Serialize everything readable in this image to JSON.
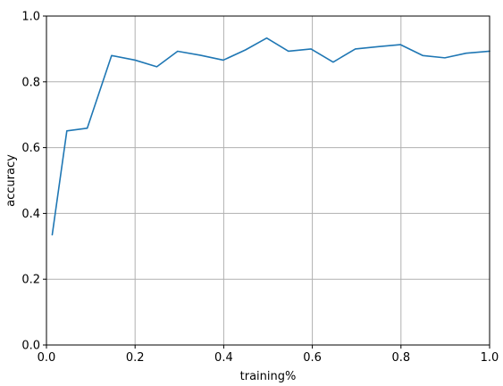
{
  "chart_data": {
    "type": "line",
    "title": "",
    "xlabel": "training%",
    "ylabel": "accuracy",
    "xlim": [
      0.0,
      1.0
    ],
    "ylim": [
      0.0,
      1.0
    ],
    "xticks": [
      0.0,
      0.2,
      0.4,
      0.6,
      0.8,
      1.0
    ],
    "yticks": [
      0.0,
      0.2,
      0.4,
      0.6,
      0.8,
      1.0
    ],
    "xtick_labels": [
      "0.0",
      "0.2",
      "0.4",
      "0.6",
      "0.8",
      "1.0"
    ],
    "ytick_labels": [
      "0.0",
      "0.2",
      "0.4",
      "0.6",
      "0.8",
      "1.0"
    ],
    "grid": true,
    "legend": false,
    "series": [
      {
        "color": "#1f77b4",
        "x": [
          0.013,
          0.046,
          0.092,
          0.147,
          0.2,
          0.249,
          0.296,
          0.347,
          0.399,
          0.449,
          0.497,
          0.546,
          0.597,
          0.647,
          0.697,
          0.749,
          0.799,
          0.849,
          0.899,
          0.947,
          1.0
        ],
        "y": [
          0.335,
          0.651,
          0.659,
          0.88,
          0.866,
          0.846,
          0.893,
          0.881,
          0.866,
          0.897,
          0.933,
          0.893,
          0.9,
          0.86,
          0.9,
          0.907,
          0.913,
          0.88,
          0.873,
          0.887,
          0.893
        ]
      }
    ]
  }
}
